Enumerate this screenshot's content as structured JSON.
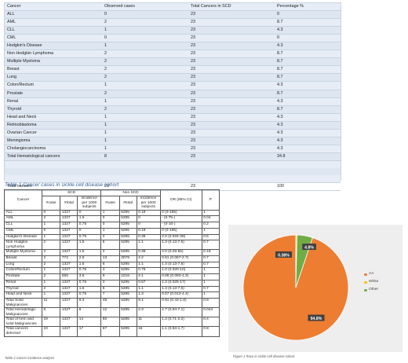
{
  "table1": {
    "headers": [
      "Cancer",
      "Observed cases",
      "Total Cancers in SCD",
      "Percentage %"
    ],
    "rows": [
      [
        "ALL",
        "0",
        "23",
        "0"
      ],
      [
        "AML",
        "2",
        "23",
        "8.7"
      ],
      [
        "CLL",
        "1",
        "23",
        "4.3"
      ],
      [
        "CML",
        "0",
        "23",
        "0"
      ],
      [
        "Hodgkin's Disease",
        "1",
        "23",
        "4.3"
      ],
      [
        "Non Hodgkin Lymphoma",
        "2",
        "23",
        "8.7"
      ],
      [
        "Multiple Myeloma",
        "2",
        "23",
        "8.7"
      ],
      [
        "Breast",
        "2",
        "23",
        "8.7"
      ],
      [
        "Lung",
        "2",
        "23",
        "8.7"
      ],
      [
        "Colon/Rectum",
        "1",
        "23",
        "4.3"
      ],
      [
        "Prostate",
        "2",
        "23",
        "8.7"
      ],
      [
        "Renal",
        "1",
        "23",
        "4.3"
      ],
      [
        "Thyroid",
        "2",
        "23",
        "8.7"
      ],
      [
        "Head and Neck",
        "1",
        "23",
        "4.3"
      ],
      [
        "Retinoblastoma",
        "1",
        "23",
        "4.3"
      ],
      [
        "Ovarian Cancer",
        "1",
        "23",
        "4.3"
      ],
      [
        "Meningioma",
        "1",
        "23",
        "4.3"
      ],
      [
        "Cholangiocarcinoma",
        "1",
        "23",
        "4.3"
      ],
      [
        "Total Hematological cancers",
        "8",
        "23",
        "34.8"
      ]
    ],
    "total": [
      "Total cancers",
      "23",
      "23",
      "100"
    ],
    "caption": "Table 1 Cancer cases in sickle cell disease cohort"
  },
  "table2": {
    "group_headers": [
      "SCD",
      "Non SCD"
    ],
    "col_cancer": "Cancer",
    "sub_headers": [
      "#case",
      "#total",
      "incidence per 1000 subjects",
      "#case",
      "#total",
      "incidence per 1000 subjects"
    ],
    "col_or": "OR (95% CI)",
    "col_p": "P",
    "rows": [
      [
        "ALL",
        "0",
        "1327",
        "0",
        "1",
        "5295",
        "0.19",
        "0 (0-155)",
        "1"
      ],
      [
        "AML",
        "2",
        "1327",
        "1.5",
        "0",
        "5295",
        "0",
        "- (0.75-)",
        "0.04"
      ],
      [
        "CLL",
        "1",
        "1327",
        "0.75",
        "0",
        "5295",
        "0",
        "- (0-10-)",
        "0.2"
      ],
      [
        "CML",
        "0",
        "1327",
        "0",
        "1",
        "5295",
        "0.19",
        "0 (0-155)",
        "1"
      ],
      [
        "Hodgkin's Disease",
        "1",
        "1327",
        "0.75",
        "2",
        "5295",
        "0.38",
        "2.0 (0.034-38)",
        "0.5"
      ],
      [
        "Non Hodgkin Lymphoma",
        "2",
        "1327",
        "1.5",
        "6",
        "5295",
        "1.1",
        "1.3 (0.13-7.5)",
        "0.7"
      ],
      [
        "Multiple Myeloma",
        "2",
        "1327",
        "1.5",
        "2",
        "5295",
        "0.38",
        "4.0 (0.29-55)",
        "0.18"
      ],
      [
        "Breast",
        "2",
        "772",
        "2.6",
        "13",
        "3079",
        "4.2",
        "0.61 (0.067-2.7)",
        "0.7"
      ],
      [
        "Lung",
        "2",
        "1327",
        "1.5",
        "6",
        "5295",
        "1.1",
        "1.3 (0.13-7.5)",
        "0.7"
      ],
      [
        "Colon/Rectum",
        "1",
        "1327",
        "0.75",
        "4",
        "5295",
        "0.76",
        "1.0 (0.020-10)",
        "1"
      ],
      [
        "Prostate",
        "2",
        "555",
        "3.6",
        "9",
        "2216",
        "4.1",
        "0.89 (0.093-4.3)",
        "1"
      ],
      [
        "Renal",
        "1",
        "1327",
        "0.75",
        "3",
        "5295",
        "0.57",
        "1.3 (0.025-17)",
        "1"
      ],
      [
        "Thyroid",
        "2",
        "1327",
        "1.5",
        "6",
        "5295",
        "1.1",
        "1.3 (0.13-7.5)",
        "0.7"
      ],
      [
        "Head and Neck",
        "1",
        "1327",
        "0.75",
        "7",
        "5295",
        "1.3",
        "0.57 (0.013-4.4)",
        "1"
      ],
      [
        "Total Solid Malignancies",
        "11",
        "1327",
        "8.3",
        "48",
        "5295",
        "9.1",
        "0.91 (0.43-1.8)",
        "0.9"
      ],
      [
        "Total Hematologic Malignancies",
        "8",
        "1327",
        "6",
        "12",
        "5295",
        "2.3",
        "2.7 (0.94-7.1)",
        "0.044"
      ],
      [
        "Total of hem and solid Malignancies",
        "19",
        "1327",
        "14",
        "60",
        "5295",
        "11",
        "1.3 (0.71-2.2)",
        "0.4"
      ],
      [
        "Total cancers detected",
        "23",
        "1327",
        "17",
        "87",
        "5295",
        "16",
        "1.1 (0.63-1.7)",
        "0.8"
      ]
    ],
    "caption": "Table 2 Cancer incidence analysis"
  },
  "figure1": {
    "caption": "Figure 1 Race in sickle cell disease cohort.",
    "chart_data": {
      "type": "pie",
      "categories": [
        "AA",
        "White",
        "Other"
      ],
      "values": [
        94.8,
        0.38,
        4.8
      ],
      "data_labels": [
        "94.8%",
        "0.38%",
        "4.8%"
      ],
      "colors": [
        "#ed7d31",
        "#ffc000",
        "#70ad47"
      ],
      "legend_position": "right"
    }
  }
}
